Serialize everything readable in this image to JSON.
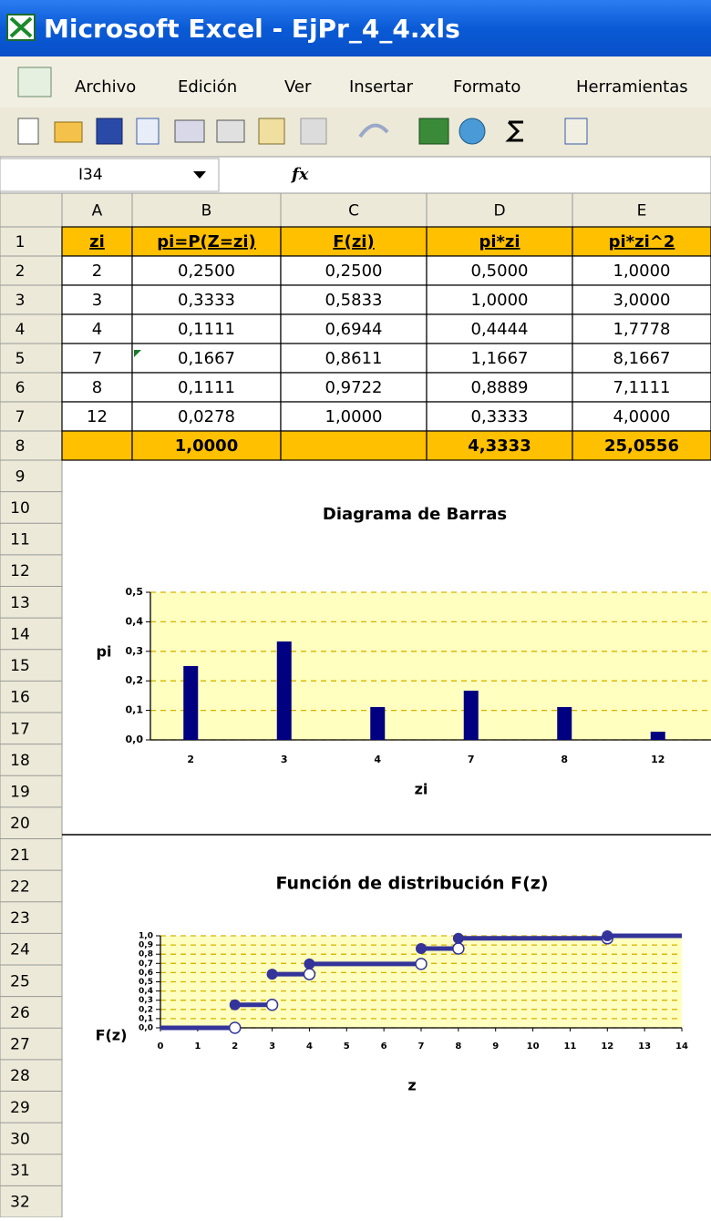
{
  "window": {
    "title": "Microsoft Excel - EjPr_4_4.xls"
  },
  "menu": [
    "Archivo",
    "Edición",
    "Ver",
    "Insertar",
    "Formato",
    "Herramientas"
  ],
  "formula_bar": {
    "name_box": "I34",
    "fx": "fx"
  },
  "sheet": {
    "columns": [
      "A",
      "B",
      "C",
      "D",
      "E"
    ],
    "row_numbers": [
      1,
      2,
      3,
      4,
      5,
      6,
      7,
      8,
      9,
      10,
      11,
      12,
      13,
      14,
      15,
      16,
      17,
      18,
      19,
      20,
      21,
      22,
      23,
      24,
      25,
      26,
      27,
      28,
      29,
      30,
      31,
      32
    ],
    "rows": [
      [
        "zi",
        "pi=P(Z=zi)",
        "F(zi)",
        "pi*zi",
        "pi*zi^2"
      ],
      [
        "2",
        "0,2500",
        "0,2500",
        "0,5000",
        "1,0000"
      ],
      [
        "3",
        "0,3333",
        "0,5833",
        "1,0000",
        "3,0000"
      ],
      [
        "4",
        "0,1111",
        "0,6944",
        "0,4444",
        "1,7778"
      ],
      [
        "7",
        "0,1667",
        "0,8611",
        "1,1667",
        "8,1667"
      ],
      [
        "8",
        "0,1111",
        "0,9722",
        "0,8889",
        "7,1111"
      ],
      [
        "12",
        "0,0278",
        "1,0000",
        "0,3333",
        "4,0000"
      ],
      [
        null,
        "1,0000",
        null,
        "4,3333",
        "25,0556"
      ]
    ]
  },
  "chart_data": [
    {
      "type": "bar",
      "title": "Diagrama de Barras",
      "x_label": "zi",
      "y_label": "pi",
      "categories": [
        "2",
        "3",
        "4",
        "7",
        "8",
        "12"
      ],
      "values": [
        0.25,
        0.3333,
        0.1111,
        0.1667,
        0.1111,
        0.0278
      ],
      "color": "#000080",
      "ylim": [
        0,
        0.5
      ],
      "yticks": [
        {
          "value": 0,
          "label": "0,0"
        },
        {
          "value": 0.1,
          "label": "0,1"
        },
        {
          "value": 0.2,
          "label": "0,2"
        },
        {
          "value": 0.3,
          "label": "0,3"
        },
        {
          "value": 0.4,
          "label": "0,4"
        },
        {
          "value": 0.5,
          "label": "0,5"
        }
      ],
      "grid": true
    },
    {
      "type": "step",
      "title": "Función de distribución F(z)",
      "x_label": "z",
      "y_label": "F(z)",
      "x": [
        0,
        2,
        3,
        4,
        7,
        8,
        12
      ],
      "values": [
        0,
        0.25,
        0.5833,
        0.6944,
        0.8611,
        0.9722,
        1.0
      ],
      "color": "#33339a",
      "xlim": [
        0,
        14
      ],
      "xticks": [
        0,
        1,
        2,
        3,
        4,
        5,
        6,
        7,
        8,
        9,
        10,
        11,
        12,
        13,
        14
      ],
      "ylim": [
        0,
        1
      ],
      "yticks": [
        {
          "value": 0,
          "label": "0,0"
        },
        {
          "value": 0.1,
          "label": "0,1"
        },
        {
          "value": 0.2,
          "label": "0,2"
        },
        {
          "value": 0.3,
          "label": "0,3"
        },
        {
          "value": 0.4,
          "label": "0,4"
        },
        {
          "value": 0.5,
          "label": "0,5"
        },
        {
          "value": 0.6,
          "label": "0,6"
        },
        {
          "value": 0.7,
          "label": "0,7"
        },
        {
          "value": 0.8,
          "label": "0,8"
        },
        {
          "value": 0.9,
          "label": "0,9"
        },
        {
          "value": 1,
          "label": "1,0"
        }
      ],
      "grid": true
    }
  ]
}
